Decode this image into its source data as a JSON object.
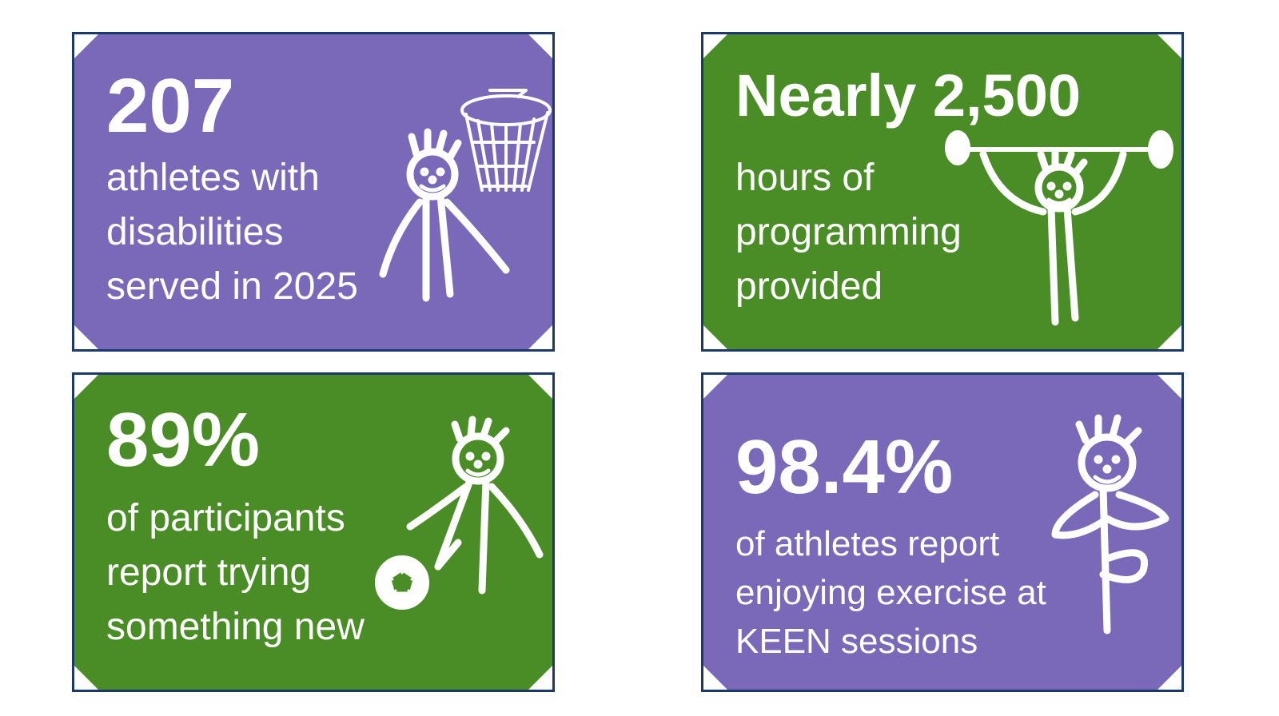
{
  "cards": [
    {
      "headline": "207",
      "lines": [
        "athletes with",
        "disabilities",
        "served in 2025"
      ]
    },
    {
      "headline": "Nearly 2,500",
      "lines": [
        "hours of",
        "programming",
        "provided"
      ]
    },
    {
      "headline": "89%",
      "lines": [
        "of participants",
        "report trying",
        "something new"
      ]
    },
    {
      "headline": "98.4%",
      "lines": [
        "of athletes report",
        "enjoying exercise at",
        "KEEN sessions"
      ]
    }
  ]
}
